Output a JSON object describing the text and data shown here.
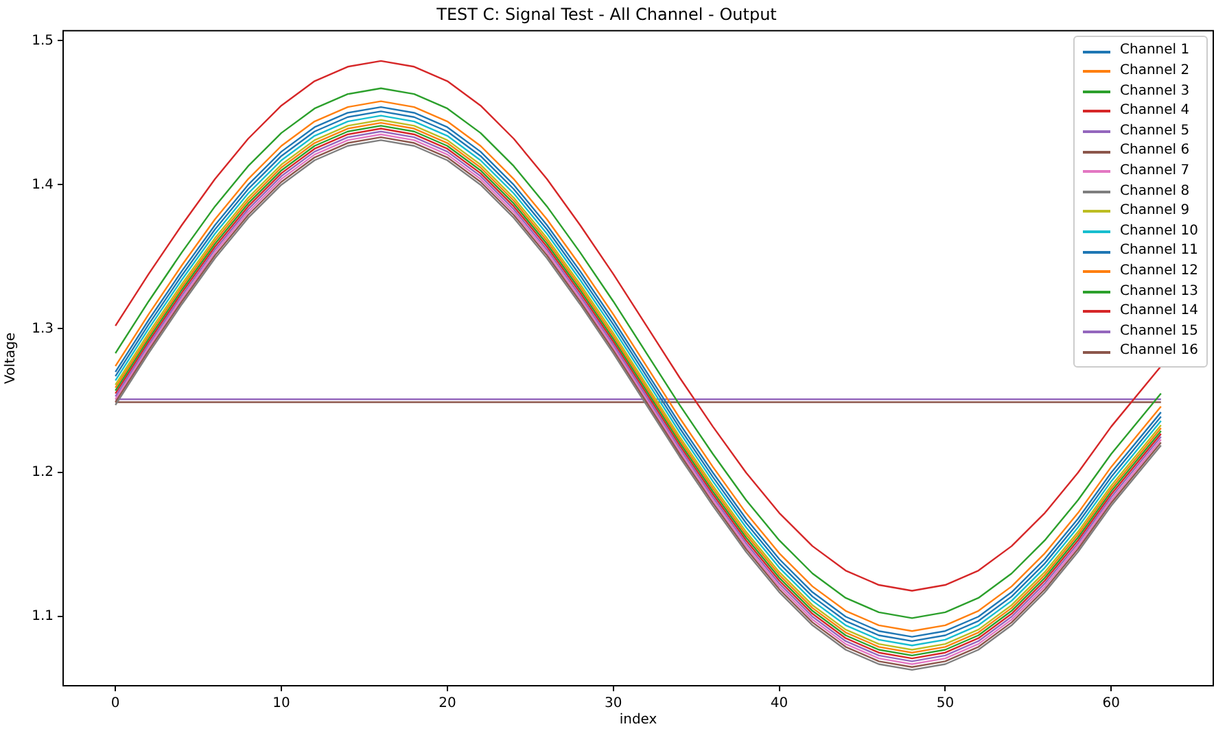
{
  "chart_data": {
    "type": "line",
    "title": "TEST C: Signal Test - All Channel - Output",
    "xlabel": "index",
    "ylabel": "Voltage",
    "legend": "top right",
    "grid": false,
    "xlim": [
      -3.15,
      66.15
    ],
    "xticks": [
      0,
      10,
      20,
      30,
      40,
      50,
      60
    ],
    "ylim": [
      1.052,
      1.507
    ],
    "yticks": [
      1.1,
      1.2,
      1.3,
      1.4,
      1.5
    ],
    "x": [
      0,
      2,
      4,
      6,
      8,
      10,
      12,
      14,
      16,
      18,
      20,
      22,
      24,
      26,
      28,
      30,
      32,
      34,
      36,
      38,
      40,
      42,
      44,
      46,
      48,
      50,
      52,
      54,
      56,
      58,
      60,
      63
    ],
    "series": [
      {
        "name": "Channel 1",
        "color": "#1f77b4",
        "values": [
          1.27,
          1.306,
          1.34,
          1.372,
          1.4,
          1.423,
          1.44,
          1.45,
          1.454,
          1.45,
          1.44,
          1.423,
          1.4,
          1.372,
          1.34,
          1.306,
          1.27,
          1.234,
          1.2,
          1.168,
          1.14,
          1.117,
          1.1,
          1.09,
          1.086,
          1.09,
          1.1,
          1.117,
          1.14,
          1.168,
          1.2,
          1.242
        ]
      },
      {
        "name": "Channel 2",
        "color": "#ff7f0e",
        "values": [
          1.274,
          1.31,
          1.344,
          1.376,
          1.404,
          1.427,
          1.444,
          1.454,
          1.458,
          1.454,
          1.444,
          1.427,
          1.404,
          1.376,
          1.344,
          1.31,
          1.274,
          1.238,
          1.204,
          1.172,
          1.144,
          1.121,
          1.104,
          1.094,
          1.09,
          1.094,
          1.104,
          1.121,
          1.144,
          1.172,
          1.204,
          1.246
        ]
      },
      {
        "name": "Channel 3",
        "color": "#2ca02c",
        "values": [
          1.283,
          1.319,
          1.353,
          1.385,
          1.413,
          1.436,
          1.453,
          1.463,
          1.467,
          1.463,
          1.453,
          1.436,
          1.413,
          1.385,
          1.353,
          1.319,
          1.283,
          1.247,
          1.213,
          1.181,
          1.153,
          1.13,
          1.113,
          1.103,
          1.099,
          1.103,
          1.113,
          1.13,
          1.153,
          1.181,
          1.213,
          1.255
        ]
      },
      {
        "name": "Channel 4",
        "color": "#d62728",
        "values": [
          1.302,
          1.338,
          1.372,
          1.404,
          1.432,
          1.455,
          1.472,
          1.482,
          1.486,
          1.482,
          1.472,
          1.455,
          1.432,
          1.404,
          1.372,
          1.338,
          1.302,
          1.266,
          1.232,
          1.2,
          1.172,
          1.149,
          1.132,
          1.122,
          1.118,
          1.122,
          1.132,
          1.149,
          1.172,
          1.2,
          1.232,
          1.274
        ]
      },
      {
        "name": "Channel 5",
        "color": "#9467bd",
        "values": [
          1.253,
          1.289,
          1.323,
          1.355,
          1.383,
          1.406,
          1.423,
          1.433,
          1.437,
          1.433,
          1.423,
          1.406,
          1.383,
          1.355,
          1.323,
          1.289,
          1.253,
          1.217,
          1.183,
          1.151,
          1.123,
          1.1,
          1.083,
          1.073,
          1.069,
          1.073,
          1.083,
          1.1,
          1.123,
          1.151,
          1.183,
          1.225
        ]
      },
      {
        "name": "Channel 6",
        "color": "#8c564b",
        "values": [
          1.249,
          1.285,
          1.319,
          1.351,
          1.379,
          1.402,
          1.419,
          1.429,
          1.433,
          1.429,
          1.419,
          1.402,
          1.379,
          1.351,
          1.319,
          1.285,
          1.249,
          1.213,
          1.179,
          1.147,
          1.119,
          1.096,
          1.079,
          1.069,
          1.065,
          1.069,
          1.079,
          1.096,
          1.119,
          1.147,
          1.179,
          1.221
        ]
      },
      {
        "name": "Channel 7",
        "color": "#e377c2",
        "values": [
          1.251,
          1.287,
          1.321,
          1.353,
          1.381,
          1.404,
          1.421,
          1.431,
          1.435,
          1.431,
          1.421,
          1.404,
          1.381,
          1.353,
          1.321,
          1.287,
          1.251,
          1.215,
          1.181,
          1.149,
          1.121,
          1.098,
          1.081,
          1.071,
          1.067,
          1.071,
          1.081,
          1.098,
          1.121,
          1.149,
          1.181,
          1.223
        ]
      },
      {
        "name": "Channel 8",
        "color": "#7f7f7f",
        "values": [
          1.247,
          1.283,
          1.317,
          1.349,
          1.377,
          1.4,
          1.417,
          1.427,
          1.431,
          1.427,
          1.417,
          1.4,
          1.377,
          1.349,
          1.317,
          1.283,
          1.247,
          1.211,
          1.177,
          1.145,
          1.117,
          1.094,
          1.077,
          1.067,
          1.063,
          1.067,
          1.077,
          1.094,
          1.117,
          1.145,
          1.177,
          1.219
        ]
      },
      {
        "name": "Channel 9",
        "color": "#bcbd22",
        "values": [
          1.261,
          1.297,
          1.331,
          1.363,
          1.391,
          1.414,
          1.431,
          1.441,
          1.445,
          1.441,
          1.431,
          1.414,
          1.391,
          1.363,
          1.331,
          1.297,
          1.261,
          1.225,
          1.191,
          1.159,
          1.131,
          1.108,
          1.091,
          1.081,
          1.077,
          1.081,
          1.091,
          1.108,
          1.131,
          1.159,
          1.191,
          1.233
        ]
      },
      {
        "name": "Channel 10",
        "color": "#17becf",
        "values": [
          1.264,
          1.3,
          1.334,
          1.366,
          1.394,
          1.417,
          1.434,
          1.444,
          1.448,
          1.444,
          1.434,
          1.417,
          1.394,
          1.366,
          1.334,
          1.3,
          1.264,
          1.228,
          1.194,
          1.162,
          1.134,
          1.111,
          1.094,
          1.084,
          1.08,
          1.084,
          1.094,
          1.111,
          1.134,
          1.162,
          1.194,
          1.236
        ]
      },
      {
        "name": "Channel 11",
        "color": "#1f77b4",
        "values": [
          1.267,
          1.303,
          1.337,
          1.369,
          1.397,
          1.42,
          1.437,
          1.447,
          1.451,
          1.447,
          1.437,
          1.42,
          1.397,
          1.369,
          1.337,
          1.303,
          1.267,
          1.231,
          1.197,
          1.165,
          1.137,
          1.114,
          1.097,
          1.087,
          1.083,
          1.087,
          1.097,
          1.114,
          1.137,
          1.165,
          1.197,
          1.239
        ]
      },
      {
        "name": "Channel 12",
        "color": "#ff7f0e",
        "values": [
          1.259,
          1.295,
          1.329,
          1.361,
          1.389,
          1.412,
          1.429,
          1.439,
          1.443,
          1.439,
          1.429,
          1.412,
          1.389,
          1.361,
          1.329,
          1.295,
          1.259,
          1.223,
          1.189,
          1.157,
          1.129,
          1.106,
          1.089,
          1.079,
          1.075,
          1.079,
          1.089,
          1.106,
          1.129,
          1.157,
          1.189,
          1.231
        ]
      },
      {
        "name": "Channel 13",
        "color": "#2ca02c",
        "values": [
          1.257,
          1.293,
          1.327,
          1.359,
          1.387,
          1.41,
          1.427,
          1.437,
          1.441,
          1.437,
          1.427,
          1.41,
          1.387,
          1.359,
          1.327,
          1.293,
          1.257,
          1.221,
          1.187,
          1.155,
          1.127,
          1.104,
          1.087,
          1.077,
          1.073,
          1.077,
          1.087,
          1.104,
          1.127,
          1.155,
          1.187,
          1.229
        ]
      },
      {
        "name": "Channel 14",
        "color": "#d62728",
        "values": [
          1.255,
          1.291,
          1.325,
          1.357,
          1.385,
          1.408,
          1.425,
          1.435,
          1.439,
          1.435,
          1.425,
          1.408,
          1.385,
          1.357,
          1.325,
          1.291,
          1.255,
          1.219,
          1.185,
          1.153,
          1.125,
          1.102,
          1.085,
          1.075,
          1.071,
          1.075,
          1.085,
          1.102,
          1.125,
          1.153,
          1.185,
          1.227
        ]
      },
      {
        "name": "Channel 15",
        "color": "#9467bd",
        "values": [
          1.251,
          1.251,
          1.251,
          1.251,
          1.251,
          1.251,
          1.251,
          1.251,
          1.251,
          1.251,
          1.251,
          1.251,
          1.251,
          1.251,
          1.251,
          1.251,
          1.251,
          1.251,
          1.251,
          1.251,
          1.251,
          1.251,
          1.251,
          1.251,
          1.251,
          1.251,
          1.251,
          1.251,
          1.251,
          1.251,
          1.251,
          1.251
        ]
      },
      {
        "name": "Channel 16",
        "color": "#8c564b",
        "values": [
          1.249,
          1.249,
          1.249,
          1.249,
          1.249,
          1.249,
          1.249,
          1.249,
          1.249,
          1.249,
          1.249,
          1.249,
          1.249,
          1.249,
          1.249,
          1.249,
          1.249,
          1.249,
          1.249,
          1.249,
          1.249,
          1.249,
          1.249,
          1.249,
          1.249,
          1.249,
          1.249,
          1.249,
          1.249,
          1.249,
          1.249,
          1.249
        ]
      }
    ]
  }
}
